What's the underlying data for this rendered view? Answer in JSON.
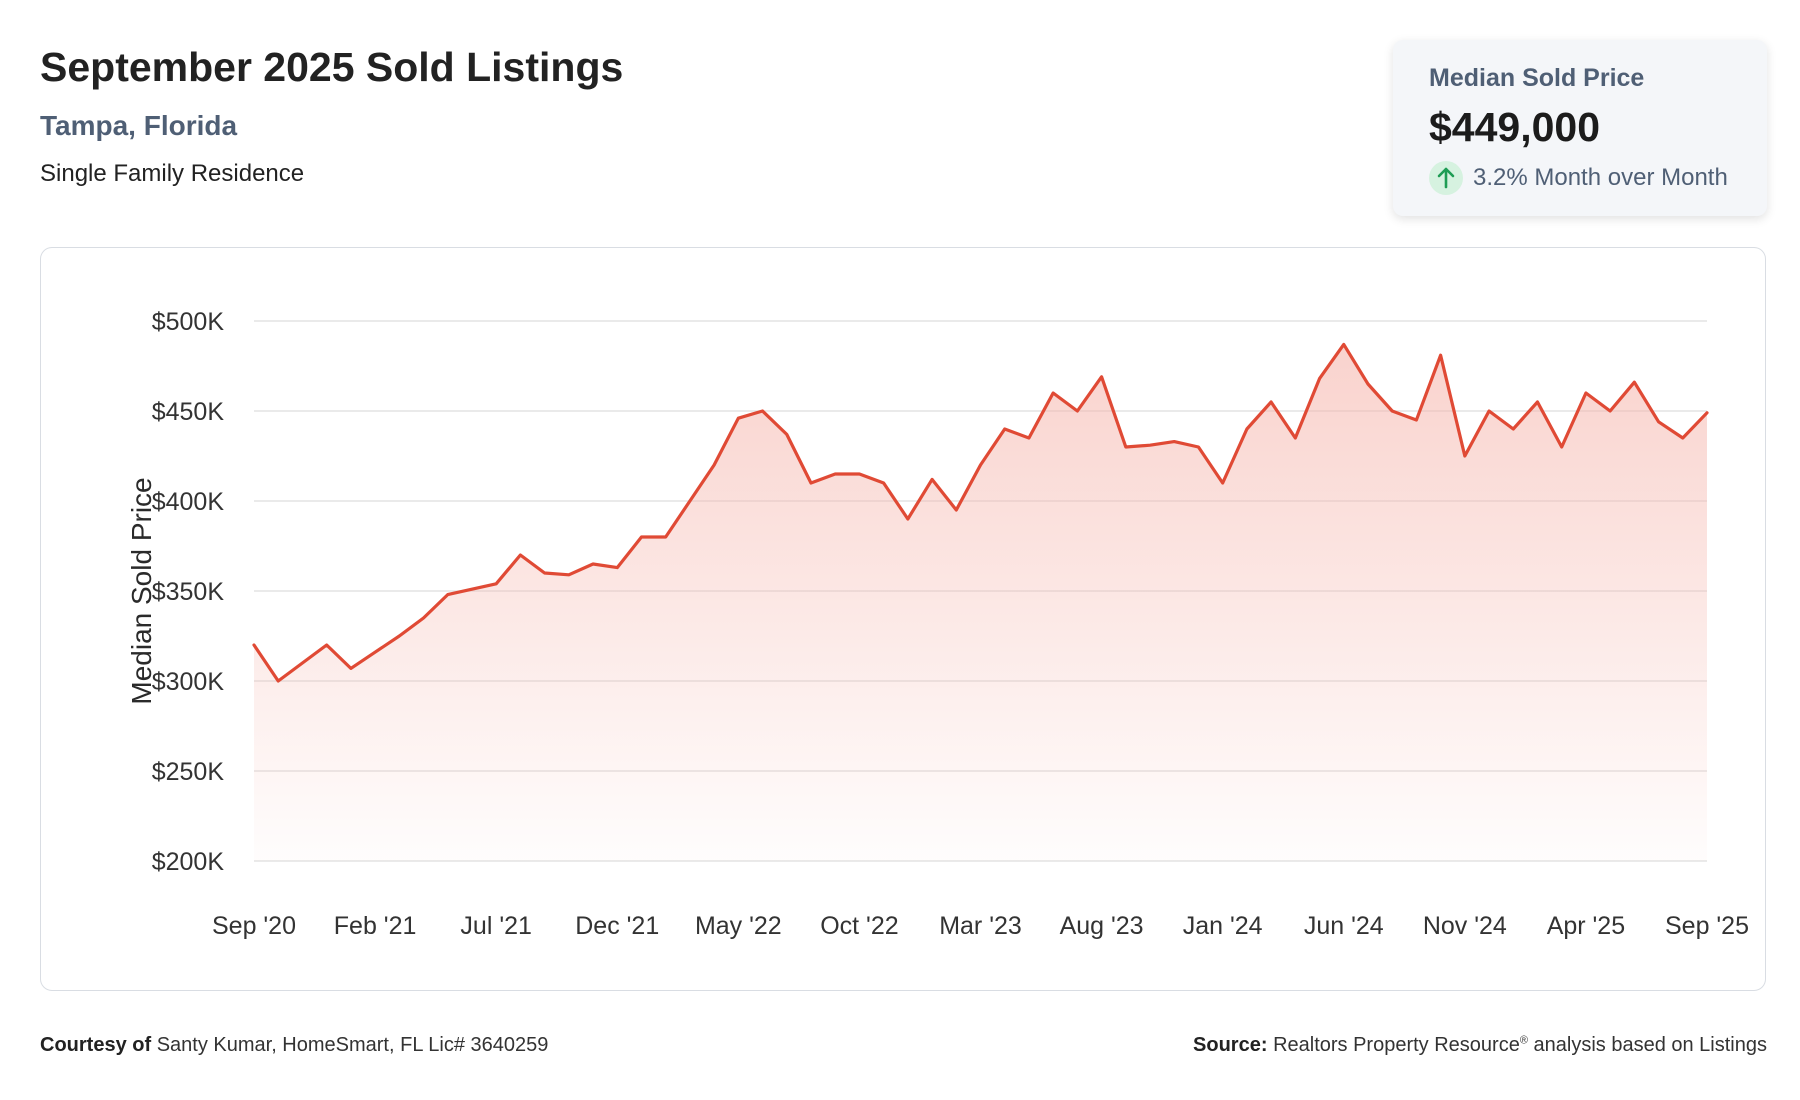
{
  "header": {
    "title": "September 2025 Sold Listings",
    "location": "Tampa, Florida",
    "property_type": "Single Family Residence"
  },
  "stat_card": {
    "label": "Median Sold Price",
    "value": "$449,000",
    "change": "3.2% Month over Month",
    "change_color": "#1f9d55",
    "change_bg": "#d6f2e0",
    "icon": "arrow-up-icon"
  },
  "footer": {
    "courtesy_label": "Courtesy of",
    "courtesy_text": "Santy Kumar, HomeSmart, FL Lic# 3640259",
    "source_label": "Source:",
    "source_text": "Realtors Property Resource",
    "source_mark": "®",
    "source_suffix": "analysis based on Listings"
  },
  "colors": {
    "line": "#e04a35",
    "fill": "#f5b5ac",
    "grid": "#e3e3e3"
  },
  "chart_data": {
    "type": "area",
    "title": "Median Sold Price",
    "ylabel": "Median Sold Price",
    "xlabel": "",
    "ylim": [
      200000,
      500000
    ],
    "y_ticks": [
      200000,
      250000,
      300000,
      350000,
      400000,
      450000,
      500000
    ],
    "y_tick_labels": [
      "$200K",
      "$250K",
      "$300K",
      "$350K",
      "$400K",
      "$450K",
      "$500K"
    ],
    "x_tick_labels": [
      "Sep '20",
      "Feb '21",
      "Jul '21",
      "Dec '21",
      "May '22",
      "Oct '22",
      "Mar '23",
      "Aug '23",
      "Jan '24",
      "Jun '24",
      "Nov '24",
      "Apr '25",
      "Sep '25"
    ],
    "x_tick_every": 5,
    "grid": true,
    "series": [
      {
        "name": "Median Sold Price",
        "start": "Sep '20",
        "end": "Sep '25",
        "frequency": "monthly",
        "values": [
          320000,
          300000,
          310000,
          320000,
          307000,
          316000,
          325000,
          335000,
          348000,
          351000,
          354000,
          370000,
          360000,
          359000,
          365000,
          363000,
          380000,
          380000,
          400000,
          420000,
          446000,
          450000,
          437000,
          410000,
          415000,
          415000,
          410000,
          390000,
          412000,
          395000,
          420000,
          440000,
          435000,
          460000,
          450000,
          469000,
          430000,
          431000,
          433000,
          430000,
          410000,
          440000,
          455000,
          435000,
          468000,
          487000,
          465000,
          450000,
          445000,
          481000,
          425000,
          450000,
          440000,
          455000,
          430000,
          460000,
          450000,
          466000,
          444000,
          435000,
          449000
        ]
      }
    ]
  }
}
